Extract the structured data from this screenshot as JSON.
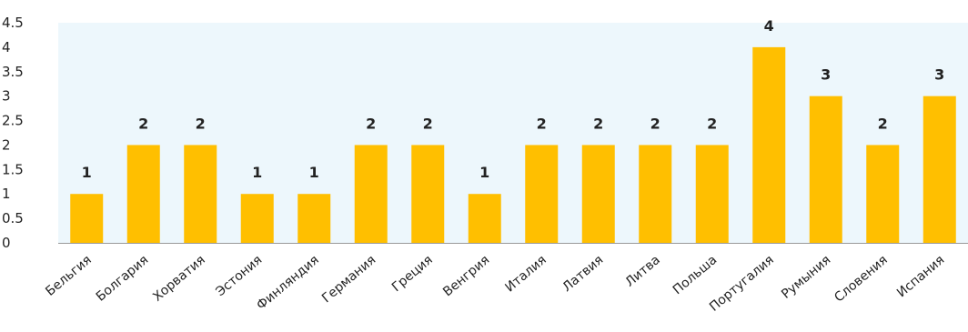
{
  "chart_data": {
    "type": "bar",
    "categories": [
      "Бельгия",
      "Болгария",
      "Хорватия",
      "Эстония",
      "Финляндия",
      "Германия",
      "Греция",
      "Венгрия",
      "Италия",
      "Латвия",
      "Литва",
      "Польша",
      "Португалия",
      "Румыния",
      "Словения",
      "Испания"
    ],
    "values": [
      1,
      2,
      2,
      1,
      1,
      2,
      2,
      1,
      2,
      2,
      2,
      2,
      4,
      3,
      2,
      3
    ],
    "data_labels": [
      "1",
      "2",
      "2",
      "1",
      "1",
      "2",
      "2",
      "1",
      "2",
      "2",
      "2",
      "2",
      "4",
      "3",
      "2",
      "3"
    ],
    "yticks": [
      "0",
      "0.5",
      "1",
      "1.5",
      "2",
      "2.5",
      "3",
      "3.5",
      "4",
      "4.5"
    ],
    "ylim": [
      0,
      4.5
    ],
    "grid": false,
    "legend": "none",
    "title": "",
    "xlabel": "",
    "ylabel": "",
    "colors": {
      "bar": "#FFBF00",
      "plot_background": "#EDF7FC",
      "axis": "#999999",
      "text": "#222222"
    }
  }
}
